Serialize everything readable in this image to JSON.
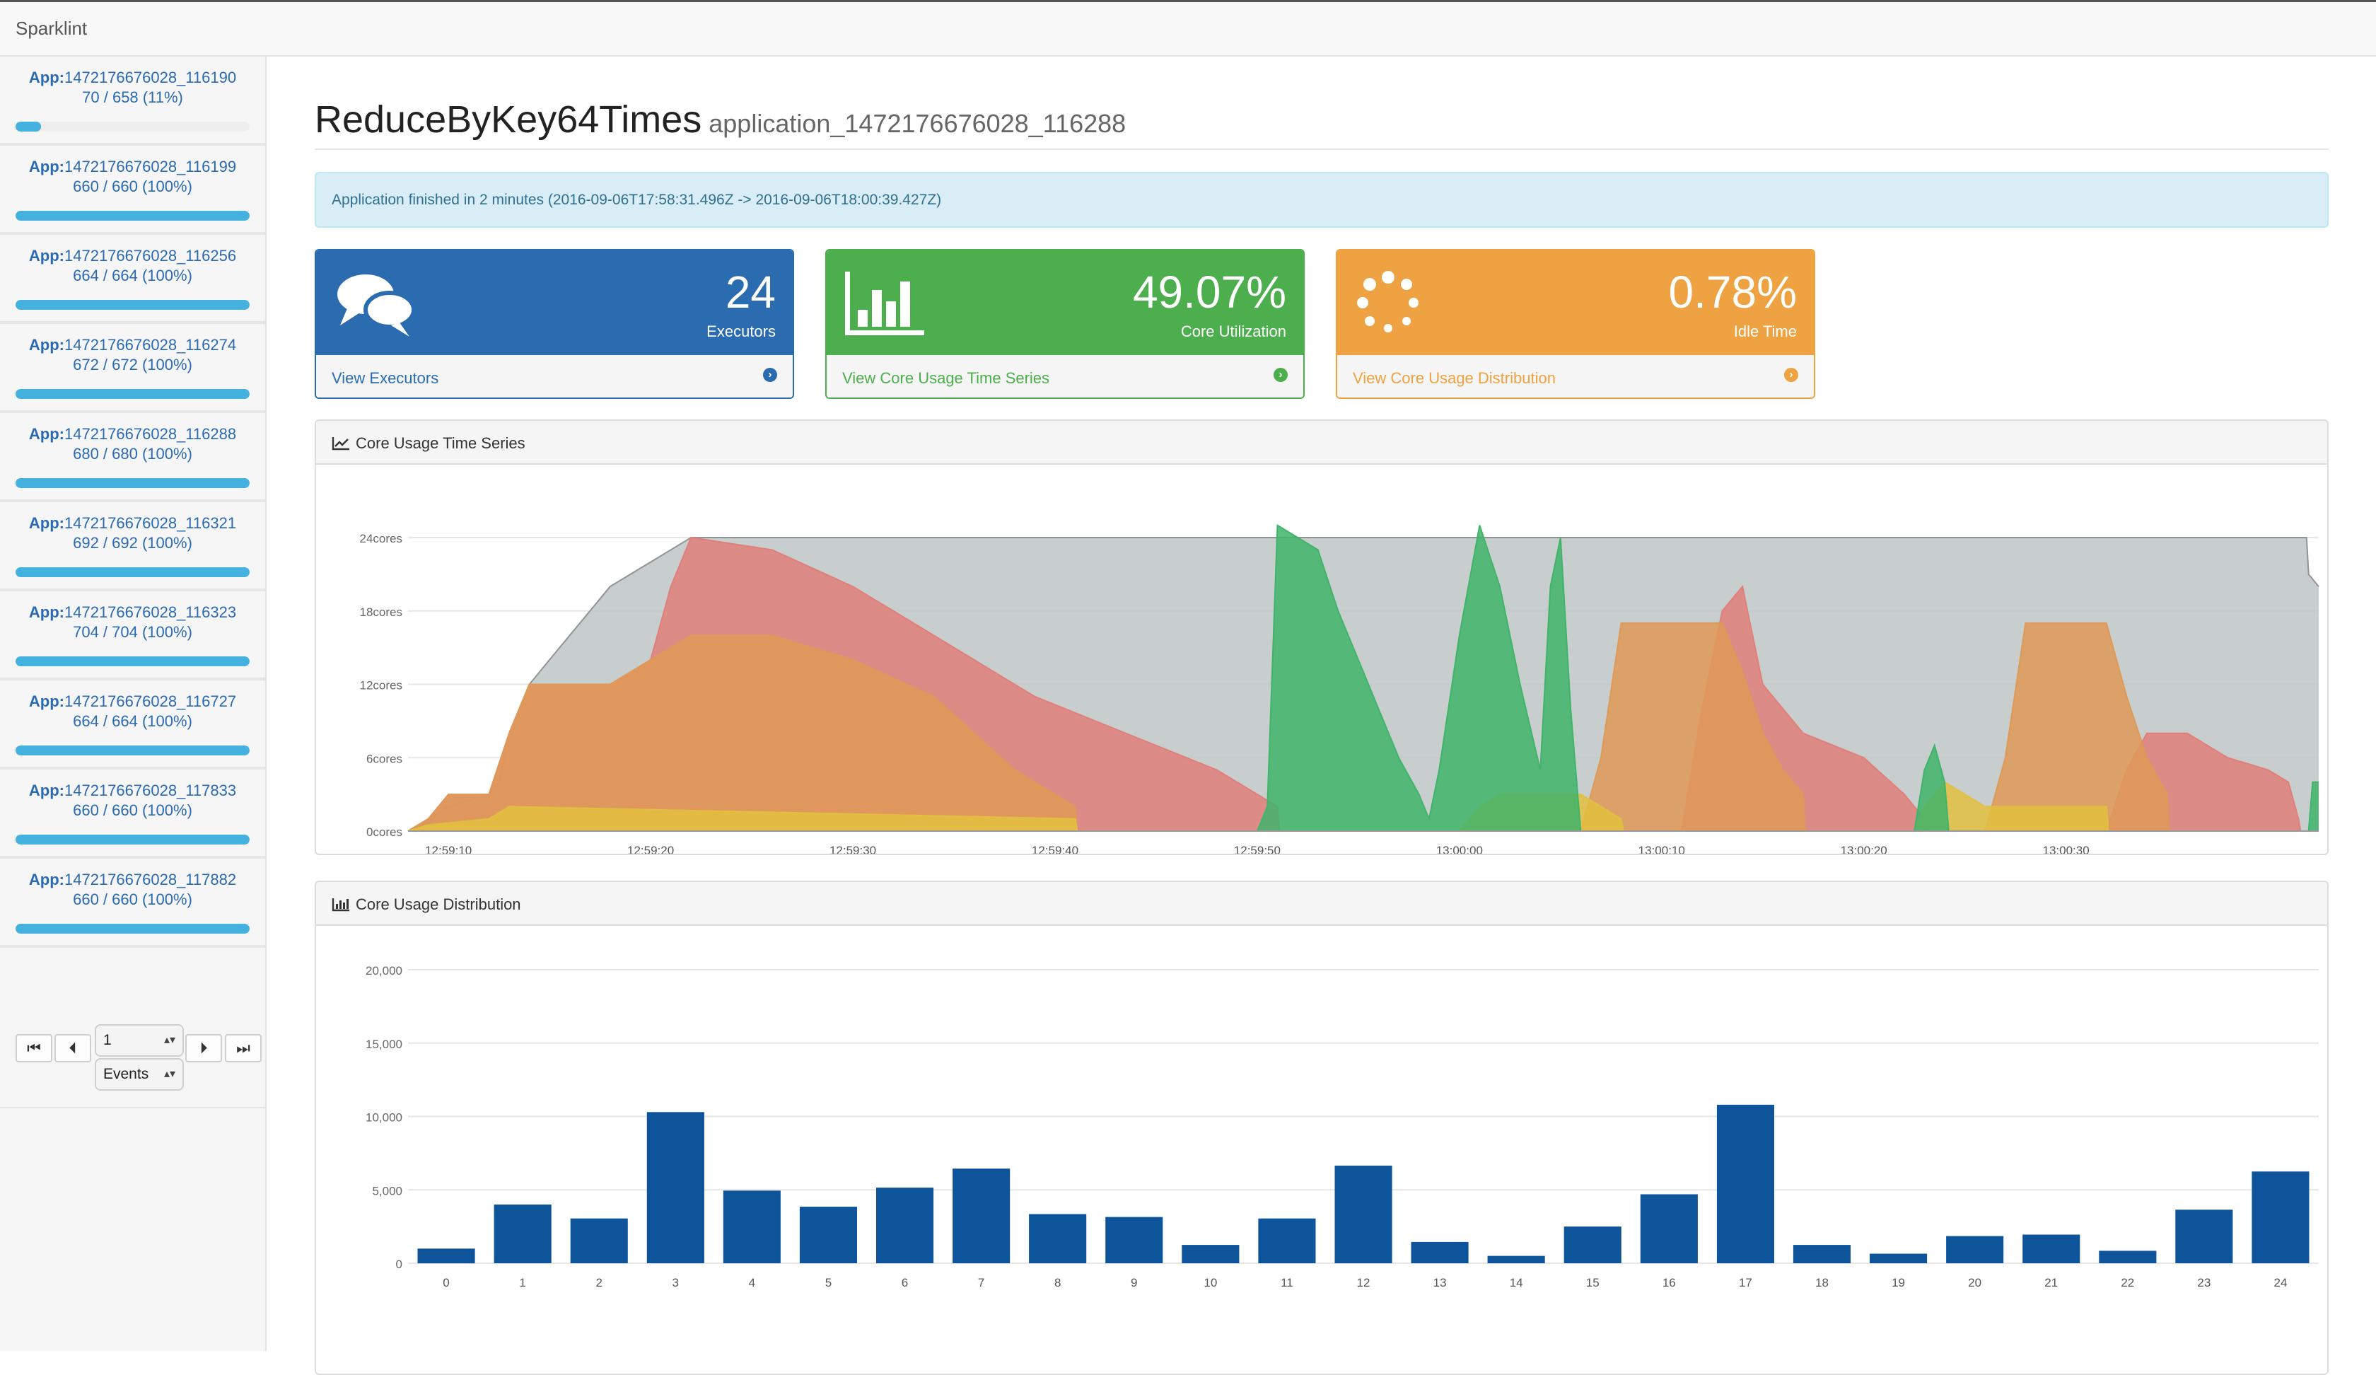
{
  "brand": "Sparklint",
  "sidebar": {
    "items": [
      {
        "prefix": "App:",
        "id": "1472176676028_116190",
        "count": "70 / 658 (11%)",
        "progress": 0.11
      },
      {
        "prefix": "App:",
        "id": "1472176676028_116199",
        "count": "660 / 660 (100%)",
        "progress": 1.0
      },
      {
        "prefix": "App:",
        "id": "1472176676028_116256",
        "count": "664 / 664 (100%)",
        "progress": 1.0
      },
      {
        "prefix": "App:",
        "id": "1472176676028_116274",
        "count": "672 / 672 (100%)",
        "progress": 1.0
      },
      {
        "prefix": "App:",
        "id": "1472176676028_116288",
        "count": "680 / 680 (100%)",
        "progress": 1.0
      },
      {
        "prefix": "App:",
        "id": "1472176676028_116321",
        "count": "692 / 692 (100%)",
        "progress": 1.0
      },
      {
        "prefix": "App:",
        "id": "1472176676028_116323",
        "count": "704 / 704 (100%)",
        "progress": 1.0
      },
      {
        "prefix": "App:",
        "id": "1472176676028_116727",
        "count": "664 / 664 (100%)",
        "progress": 1.0
      },
      {
        "prefix": "App:",
        "id": "1472176676028_117833",
        "count": "660 / 660 (100%)",
        "progress": 1.0
      },
      {
        "prefix": "App:",
        "id": "1472176676028_117882",
        "count": "660 / 660 (100%)",
        "progress": 1.0
      }
    ],
    "pager": {
      "step_value": "1",
      "unit_value": "Events",
      "first_icon": "skip-back-icon",
      "prev_icon": "step-back-icon",
      "next_icon": "step-forward-icon",
      "last_icon": "skip-forward-icon"
    }
  },
  "header": {
    "title": "ReduceByKey64Times",
    "subtitle": "application_1472176676028_116288"
  },
  "alert": "Application finished in 2 minutes (2016-09-06T17:58:31.496Z -> 2016-09-06T18:00:39.427Z)",
  "cards": [
    {
      "value": "24",
      "label": "Executors",
      "link": "View Executors",
      "icon": "comments-icon",
      "color": "#2b6cb0"
    },
    {
      "value": "49.07%",
      "label": "Core Utilization",
      "link": "View Core Usage Time Series",
      "icon": "bar-chart-icon",
      "color": "#4cae4c"
    },
    {
      "value": "0.78%",
      "label": "Idle Time",
      "link": "View Core Usage Distribution",
      "icon": "spinner-icon",
      "color": "#eea241"
    }
  ],
  "panels": {
    "timeseries_title": "Core Usage Time Series",
    "distribution_title": "Core Usage Distribution"
  },
  "chart_data": [
    {
      "type": "area",
      "title": "Core Usage Time Series",
      "y_tick_labels": [
        "0cores",
        "6cores",
        "12cores",
        "18cores",
        "24cores"
      ],
      "ylim": [
        0,
        24
      ],
      "x_tick_labels": [
        "12:59:10",
        "12:59:20",
        "12:59:30",
        "12:59:40",
        "12:59:50",
        "13:00:00",
        "13:00:10",
        "13:00:20",
        "13:00:30"
      ],
      "x_ticks_seconds": [
        10,
        20,
        30,
        40,
        50,
        60,
        70,
        80,
        90
      ],
      "xlim_seconds": [
        8,
        102.5
      ],
      "grid": true,
      "colors": {
        "capacity": "#bec4c4",
        "red": "#e07f7a",
        "orange": "#df9957",
        "yellow": "#e3bf3f",
        "green": "#3fb46a"
      },
      "series": [
        {
          "key": "capacity",
          "points": [
            [
              8,
              0
            ],
            [
              9,
              1
            ],
            [
              10,
              2
            ],
            [
              12,
              3
            ],
            [
              12.5,
              4
            ],
            [
              13,
              8
            ],
            [
              13.5,
              10
            ],
            [
              14,
              12
            ],
            [
              15,
              14
            ],
            [
              16,
              16
            ],
            [
              17,
              18
            ],
            [
              18,
              20
            ],
            [
              19,
              21
            ],
            [
              20,
              22
            ],
            [
              21,
              23
            ],
            [
              22,
              24
            ],
            [
              101.9,
              24
            ],
            [
              102,
              21
            ],
            [
              102.5,
              20
            ]
          ]
        },
        {
          "key": "red",
          "points": [
            [
              8,
              0
            ],
            [
              9,
              1
            ],
            [
              10,
              3
            ],
            [
              12,
              3
            ],
            [
              13,
              8
            ],
            [
              14,
              12
            ],
            [
              18,
              12
            ],
            [
              20,
              14
            ],
            [
              21,
              20
            ],
            [
              22,
              24
            ],
            [
              26,
              23
            ],
            [
              30,
              20
            ],
            [
              33,
              17
            ],
            [
              36,
              14
            ],
            [
              39,
              11
            ],
            [
              42,
              9
            ],
            [
              45,
              7
            ],
            [
              48,
              5
            ],
            [
              50,
              3
            ],
            [
              51,
              2
            ],
            [
              51.1,
              0
            ],
            [
              71,
              0
            ],
            [
              72,
              10
            ],
            [
              73,
              18
            ],
            [
              74,
              20
            ],
            [
              75,
              12
            ],
            [
              77,
              8
            ],
            [
              80,
              6
            ],
            [
              82,
              3
            ],
            [
              83,
              1
            ],
            [
              83.1,
              0
            ],
            [
              92,
              0
            ],
            [
              93,
              5
            ],
            [
              94,
              8
            ],
            [
              96,
              8
            ],
            [
              98,
              6
            ],
            [
              100,
              5
            ],
            [
              101,
              4
            ],
            [
              101.5,
              1
            ],
            [
              101.6,
              0
            ],
            [
              102.5,
              0
            ]
          ]
        },
        {
          "key": "orange",
          "points": [
            [
              8,
              0
            ],
            [
              9,
              1
            ],
            [
              10,
              3
            ],
            [
              12,
              3
            ],
            [
              13,
              8
            ],
            [
              14,
              12
            ],
            [
              18,
              12
            ],
            [
              20,
              14
            ],
            [
              22,
              16
            ],
            [
              26,
              16
            ],
            [
              30,
              14
            ],
            [
              34,
              11
            ],
            [
              36,
              8
            ],
            [
              38,
              5
            ],
            [
              40,
              3
            ],
            [
              41,
              2
            ],
            [
              41.1,
              0
            ],
            [
              66,
              0
            ],
            [
              67,
              6
            ],
            [
              68,
              17
            ],
            [
              73,
              17
            ],
            [
              74,
              13
            ],
            [
              75,
              8
            ],
            [
              76,
              5
            ],
            [
              77,
              3
            ],
            [
              77.1,
              0
            ],
            [
              86,
              0
            ],
            [
              87,
              6
            ],
            [
              88,
              17
            ],
            [
              92,
              17
            ],
            [
              93,
              11
            ],
            [
              94,
              6
            ],
            [
              95,
              3
            ],
            [
              95.1,
              0
            ],
            [
              102.5,
              0
            ]
          ]
        },
        {
          "key": "yellow",
          "points": [
            [
              8,
              0
            ],
            [
              9,
              0.5
            ],
            [
              12,
              1
            ],
            [
              13,
              2
            ],
            [
              41,
              1
            ],
            [
              41.1,
              0
            ],
            [
              60,
              0
            ],
            [
              61,
              2
            ],
            [
              62,
              3
            ],
            [
              66,
              3
            ],
            [
              67,
              2
            ],
            [
              68,
              1
            ],
            [
              68.1,
              0
            ],
            [
              82.5,
              0
            ],
            [
              83,
              2
            ],
            [
              84,
              4
            ],
            [
              85,
              3
            ],
            [
              86,
              2
            ],
            [
              92,
              2
            ],
            [
              92.1,
              0
            ],
            [
              102.5,
              0
            ]
          ]
        },
        {
          "key": "green",
          "points": [
            [
              8,
              0
            ],
            [
              50,
              0
            ],
            [
              50.5,
              2
            ],
            [
              51,
              25
            ],
            [
              52,
              24
            ],
            [
              53,
              23
            ],
            [
              54,
              18
            ],
            [
              55,
              14
            ],
            [
              56,
              10
            ],
            [
              57,
              6
            ],
            [
              58,
              3
            ],
            [
              58.5,
              1
            ],
            [
              59,
              5
            ],
            [
              60,
              16
            ],
            [
              61,
              25
            ],
            [
              62,
              20
            ],
            [
              63,
              12
            ],
            [
              64,
              5
            ],
            [
              64.5,
              20
            ],
            [
              65,
              24
            ],
            [
              65.5,
              10
            ],
            [
              66,
              0
            ],
            [
              82.5,
              0
            ],
            [
              83,
              5
            ],
            [
              83.5,
              7
            ],
            [
              84,
              4
            ],
            [
              84.2,
              0
            ],
            [
              102,
              0
            ],
            [
              102.2,
              4
            ],
            [
              102.5,
              4
            ]
          ]
        }
      ]
    },
    {
      "type": "bar",
      "title": "Core Usage Distribution",
      "categories": [
        "0",
        "1",
        "2",
        "3",
        "4",
        "5",
        "6",
        "7",
        "8",
        "9",
        "10",
        "11",
        "12",
        "13",
        "14",
        "15",
        "16",
        "17",
        "18",
        "19",
        "20",
        "21",
        "22",
        "23",
        "24"
      ],
      "values": [
        1000,
        4000,
        3050,
        10300,
        4950,
        3850,
        5150,
        6450,
        3350,
        3150,
        1250,
        3050,
        6650,
        1450,
        500,
        2500,
        4700,
        10800,
        1250,
        650,
        1850,
        1950,
        850,
        3650,
        6250
      ],
      "y_tick_labels": [
        "0",
        "5,000",
        "10,000",
        "15,000",
        "20,000"
      ],
      "ylim": [
        0,
        20000
      ],
      "grid": true,
      "color": "#0e549a"
    }
  ]
}
